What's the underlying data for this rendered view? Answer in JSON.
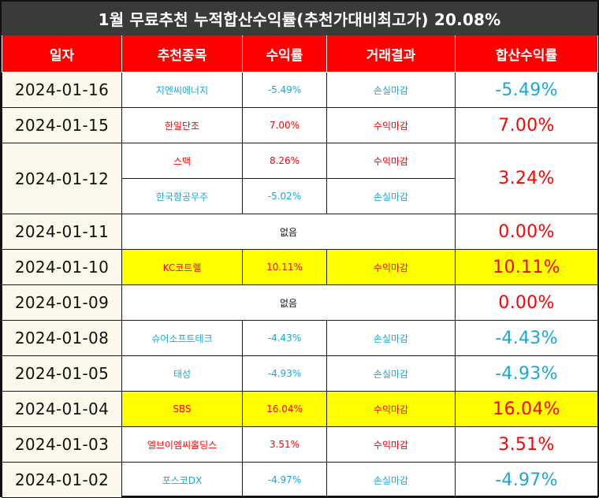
{
  "title": "1월 무료추천 누적합산수익률(추천가대비최고가) 20.08%",
  "headers": [
    "일자",
    "추천종목",
    "수익률",
    "거래결과",
    "합산수익률"
  ],
  "rows": [
    {
      "date": "2024-01-16",
      "stock": "지엔씨에너지",
      "return": "-5.49%",
      "result": "손실마감",
      "total": "-5.49%"
    },
    {
      "date": "2024-01-15",
      "stock": "한일단조",
      "return": "7.00%",
      "result": "수익마감",
      "total": "7.00%"
    },
    {
      "date": "2024-01-12",
      "stock": "스맥",
      "return": "8.26%",
      "result": "수익마감",
      "total": "3.24%",
      "stock2": "한국항공우주",
      "return2": "-5.02%",
      "result2": "손실마감"
    },
    {
      "date": "2024-01-11",
      "none": "없음",
      "total": "0.00%"
    },
    {
      "date": "2024-01-10",
      "stock": "KC코트렐",
      "return": "10.11%",
      "result": "수익마감",
      "total": "10.11%"
    },
    {
      "date": "2024-01-09",
      "none": "없음",
      "total": "0.00%"
    },
    {
      "date": "2024-01-08",
      "stock": "슈어소프트테크",
      "return": "-4.43%",
      "result": "손실마감",
      "total": "-4.43%"
    },
    {
      "date": "2024-01-05",
      "stock": "태성",
      "return": "-4.93%",
      "result": "손실마감",
      "total": "-4.93%"
    },
    {
      "date": "2024-01-04",
      "stock": "SBS",
      "return": "16.04%",
      "result": "수익마감",
      "total": "16.04%"
    },
    {
      "date": "2024-01-03",
      "stock": "엘브이엠씨홀딩스",
      "return": "3.51%",
      "result": "수익마감",
      "total": "3.51%"
    },
    {
      "date": "2024-01-02",
      "stock": "포스코DX",
      "return": "-4.97%",
      "result": "손실마감",
      "total": "-4.97%"
    }
  ],
  "colors": {
    "header_bg": "#ff0000",
    "title_bg": "#3a3a3a",
    "gain": "#ff0000",
    "loss": "#1aa7d8",
    "highlight": "#ffff00"
  }
}
